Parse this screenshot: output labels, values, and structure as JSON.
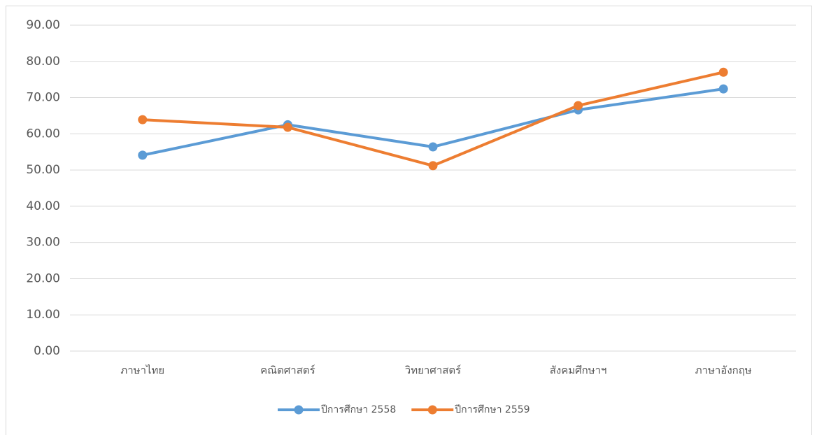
{
  "chart_data": {
    "type": "line",
    "categories": [
      "ภาษาไทย",
      "คณิตศาสตร์",
      "วิทยาศาสตร์",
      "สังคมศึกษาฯ",
      "ภาษาอังกฤษ"
    ],
    "series": [
      {
        "name": "ปีการศึกษา 2558",
        "color": "#5b9bd5",
        "values": [
          54.1,
          62.5,
          56.4,
          66.6,
          72.4
        ]
      },
      {
        "name": "ปีการศึกษา 2559",
        "color": "#ed7d31",
        "values": [
          63.9,
          61.8,
          51.2,
          67.8,
          77.0
        ]
      }
    ],
    "ylim": [
      0,
      90
    ],
    "yticks": [
      {
        "value": 0,
        "label": "0.00"
      },
      {
        "value": 10,
        "label": "10.00"
      },
      {
        "value": 20,
        "label": "20.00"
      },
      {
        "value": 30,
        "label": "30.00"
      },
      {
        "value": 40,
        "label": "40.00"
      },
      {
        "value": 50,
        "label": "50.00"
      },
      {
        "value": 60,
        "label": "60.00"
      },
      {
        "value": 70,
        "label": "70.00"
      },
      {
        "value": 80,
        "label": "80.00"
      },
      {
        "value": 90,
        "label": "90.00"
      }
    ],
    "grid": true,
    "legend": "bottom"
  }
}
